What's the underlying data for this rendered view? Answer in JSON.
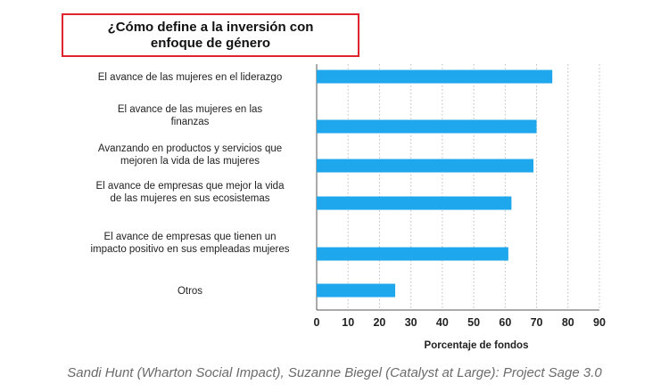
{
  "title_lines": [
    "¿Cómo define a la inversión con",
    "enfoque de género"
  ],
  "source": "Sandi Hunt (Wharton Social Impact), Suzanne Biegel (Catalyst at Large): Project Sage 3.0",
  "colors": {
    "bar": "#1ea7ec",
    "title_border": "#e0242f",
    "grid": "#bdbdbd"
  },
  "chart_data": {
    "type": "bar",
    "orientation": "horizontal",
    "categories": [
      [
        "El avance de las mujeres en el liderazgo"
      ],
      [
        "El avance de las mujeres en las",
        "finanzas"
      ],
      [
        "Avanzando en productos y servicios que",
        "mejoren la vida de las mujeres"
      ],
      [
        "El avance de empresas que mejor la vida",
        "de las mujeres en sus ecosistemas"
      ],
      [
        "El avance de empresas que tienen un",
        "impacto positivo en sus empleadas mujeres"
      ],
      [
        "Otros"
      ]
    ],
    "values": [
      75,
      70,
      69,
      62,
      61,
      25
    ],
    "xlabel": "Porcentaje de fondos",
    "xlim": [
      0,
      90
    ],
    "xticks": [
      0,
      10,
      20,
      30,
      40,
      50,
      60,
      70,
      80,
      90
    ],
    "grid": "vertical dotted"
  }
}
